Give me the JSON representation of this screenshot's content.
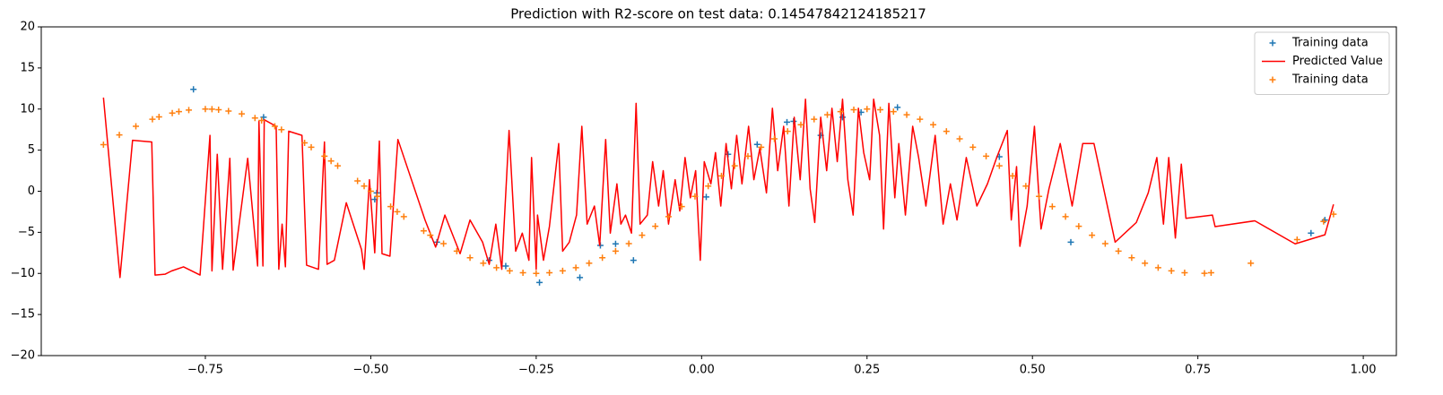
{
  "chart_data": {
    "type": "scatter",
    "title": "Prediction with R2-score on test data: 0.14547842124185217",
    "xlim": [
      -0.998,
      1.05
    ],
    "ylim": [
      -20,
      20
    ],
    "xticks": [
      {
        "value": -0.75,
        "label": "−0.75"
      },
      {
        "value": -0.5,
        "label": "−0.50"
      },
      {
        "value": -0.25,
        "label": "−0.25"
      },
      {
        "value": 0,
        "label": "0.00"
      },
      {
        "value": 0.25,
        "label": "0.25"
      },
      {
        "value": 0.5,
        "label": "0.50"
      },
      {
        "value": 0.75,
        "label": "0.75"
      },
      {
        "value": 1,
        "label": "1.00"
      }
    ],
    "yticks": [
      {
        "value": -20,
        "label": "−20"
      },
      {
        "value": -15,
        "label": "−15"
      },
      {
        "value": -10,
        "label": "−10"
      },
      {
        "value": -5,
        "label": "−5"
      },
      0,
      5,
      10,
      15,
      20
    ],
    "grid": false,
    "legend": "upper right",
    "series": [
      {
        "name": "Training data",
        "type": "scatter",
        "color": "#1f77b4",
        "x": [
          -0.768,
          -0.662,
          -0.491,
          -0.494,
          -0.4,
          -0.321,
          -0.296,
          -0.245,
          -0.184,
          -0.153,
          -0.13,
          -0.103,
          0.007,
          0.04,
          0.084,
          0.129,
          0.139,
          0.18,
          0.213,
          0.241,
          0.296,
          0.45,
          0.558,
          0.921,
          0.942
        ],
        "values": [
          12.4,
          9.0,
          -0.2,
          -1.0,
          -6.2,
          -8.4,
          -9.1,
          -11.1,
          -10.5,
          -6.6,
          -6.4,
          -8.4,
          -0.7,
          4.5,
          5.7,
          8.4,
          8.5,
          6.8,
          9.0,
          9.6,
          10.2,
          4.2,
          -6.2,
          -5.1,
          -3.5
        ]
      },
      {
        "name": "Predicted Value",
        "type": "line",
        "color": "#ff0000",
        "x": [
          -0.904,
          -0.879,
          -0.86,
          -0.831,
          -0.826,
          -0.811,
          -0.801,
          -0.783,
          -0.758,
          -0.743,
          -0.74,
          -0.732,
          -0.724,
          -0.713,
          -0.708,
          -0.686,
          -0.671,
          -0.669,
          -0.663,
          -0.661,
          -0.643,
          -0.639,
          -0.634,
          -0.629,
          -0.624,
          -0.604,
          -0.597,
          -0.579,
          -0.57,
          -0.566,
          -0.555,
          -0.537,
          -0.514,
          -0.51,
          -0.502,
          -0.494,
          -0.487,
          -0.483,
          -0.471,
          -0.459,
          -0.418,
          -0.402,
          -0.388,
          -0.365,
          -0.35,
          -0.331,
          -0.321,
          -0.311,
          -0.302,
          -0.291,
          -0.281,
          -0.271,
          -0.261,
          -0.257,
          -0.25,
          -0.248,
          -0.239,
          -0.23,
          -0.216,
          -0.21,
          -0.2,
          -0.189,
          -0.181,
          -0.173,
          -0.162,
          -0.154,
          -0.145,
          -0.138,
          -0.128,
          -0.122,
          -0.115,
          -0.106,
          -0.099,
          -0.093,
          -0.082,
          -0.074,
          -0.065,
          -0.058,
          -0.05,
          -0.04,
          -0.033,
          -0.025,
          -0.017,
          -0.009,
          -0.002,
          0.004,
          0.014,
          0.021,
          0.029,
          0.037,
          0.045,
          0.053,
          0.061,
          0.071,
          0.079,
          0.088,
          0.098,
          0.107,
          0.115,
          0.124,
          0.132,
          0.14,
          0.149,
          0.157,
          0.164,
          0.171,
          0.18,
          0.189,
          0.197,
          0.205,
          0.213,
          0.221,
          0.229,
          0.237,
          0.245,
          0.254,
          0.26,
          0.269,
          0.275,
          0.283,
          0.292,
          0.298,
          0.308,
          0.319,
          0.328,
          0.339,
          0.353,
          0.365,
          0.376,
          0.386,
          0.4,
          0.416,
          0.432,
          0.446,
          0.462,
          0.468,
          0.476,
          0.481,
          0.492,
          0.503,
          0.513,
          0.525,
          0.542,
          0.56,
          0.576,
          0.593,
          0.625,
          0.657,
          0.675,
          0.688,
          0.698,
          0.706,
          0.716,
          0.725,
          0.732,
          0.772,
          0.776,
          0.836,
          0.897,
          0.942,
          0.955
        ],
        "values": [
          11.4,
          -10.5,
          6.2,
          6.0,
          -10.2,
          -10.1,
          -9.7,
          -9.2,
          -10.2,
          6.8,
          -9.7,
          4.5,
          -9.5,
          4.0,
          -9.6,
          4.0,
          -9.1,
          8.5,
          -9.1,
          8.7,
          7.9,
          -9.5,
          -4.0,
          -9.2,
          7.3,
          6.8,
          -9.0,
          -9.5,
          6.0,
          -8.9,
          -8.4,
          -1.4,
          -7.1,
          -9.5,
          1.4,
          -7.5,
          6.1,
          -7.6,
          -7.9,
          6.3,
          -3.5,
          -6.8,
          -2.9,
          -7.6,
          -3.5,
          -6.2,
          -8.9,
          -4.0,
          -9.5,
          7.4,
          -7.3,
          -5.1,
          -8.4,
          4.1,
          -9.5,
          -2.9,
          -8.4,
          -4.3,
          5.8,
          -7.3,
          -6.2,
          -2.9,
          7.9,
          -4.0,
          -1.8,
          -6.6,
          6.3,
          -5.1,
          0.9,
          -4.0,
          -2.9,
          -5.1,
          10.7,
          -4.0,
          -2.9,
          3.6,
          -1.8,
          2.5,
          -4.0,
          1.4,
          -2.4,
          4.1,
          -0.8,
          2.5,
          -8.4,
          3.6,
          0.9,
          4.7,
          -1.8,
          5.8,
          0.3,
          6.8,
          0.9,
          7.9,
          1.4,
          5.2,
          -0.2,
          10.1,
          2.5,
          7.9,
          -1.8,
          9.0,
          1.4,
          11.2,
          0.3,
          -3.8,
          9.0,
          2.5,
          10.1,
          3.6,
          11.2,
          1.4,
          -2.9,
          10.1,
          4.7,
          1.4,
          11.2,
          6.8,
          -4.6,
          10.7,
          -0.8,
          5.8,
          -2.9,
          7.9,
          4.1,
          -1.8,
          6.8,
          -4.0,
          0.9,
          -3.5,
          4.1,
          -1.8,
          0.9,
          4.1,
          7.4,
          -3.5,
          3.0,
          -6.7,
          -1.8,
          7.9,
          -4.6,
          0.3,
          5.8,
          -1.8,
          5.8,
          5.8,
          -6.2,
          -3.8,
          -0.2,
          4.1,
          -4.0,
          4.1,
          -5.7,
          3.3,
          -3.3,
          -2.9,
          -4.3,
          -3.6,
          -6.4,
          -5.3,
          -1.6
        ]
      },
      {
        "name": "Training data",
        "type": "scatter",
        "color": "#ff7f0e",
        "x": [
          -0.904,
          -0.88,
          -0.855,
          -0.83,
          -0.82,
          -0.8,
          -0.79,
          -0.775,
          -0.75,
          -0.74,
          -0.73,
          -0.715,
          -0.695,
          -0.675,
          -0.665,
          -0.645,
          -0.635,
          -0.6,
          -0.59,
          -0.57,
          -0.56,
          -0.55,
          -0.52,
          -0.51,
          -0.5,
          -0.49,
          -0.47,
          -0.46,
          -0.45,
          -0.42,
          -0.41,
          -0.39,
          -0.37,
          -0.35,
          -0.33,
          -0.31,
          -0.29,
          -0.27,
          -0.25,
          -0.23,
          -0.21,
          -0.19,
          -0.17,
          -0.15,
          -0.13,
          -0.11,
          -0.09,
          -0.07,
          -0.05,
          -0.03,
          -0.01,
          0.01,
          0.03,
          0.05,
          0.07,
          0.09,
          0.11,
          0.13,
          0.15,
          0.17,
          0.19,
          0.21,
          0.23,
          0.25,
          0.27,
          0.29,
          0.31,
          0.33,
          0.35,
          0.37,
          0.39,
          0.41,
          0.43,
          0.45,
          0.47,
          0.49,
          0.51,
          0.53,
          0.55,
          0.57,
          0.59,
          0.61,
          0.63,
          0.65,
          0.67,
          0.69,
          0.71,
          0.73,
          0.76,
          0.77,
          0.83,
          0.9,
          0.94,
          0.955
        ],
        "values": [
          5.67,
          6.85,
          7.9,
          8.76,
          9.05,
          9.51,
          9.69,
          9.88,
          10,
          9.98,
          9.92,
          9.76,
          9.41,
          8.91,
          8.61,
          7.9,
          7.5,
          5.88,
          5.36,
          4.26,
          3.68,
          3.09,
          1.25,
          0.63,
          0,
          -0.63,
          -1.87,
          -2.49,
          -3.09,
          -4.82,
          -5.36,
          -6.37,
          -7.29,
          -8.09,
          -8.76,
          -9.3,
          -9.69,
          -9.92,
          -10,
          -9.92,
          -9.69,
          -9.3,
          -8.76,
          -8.09,
          -7.29,
          -6.37,
          -5.36,
          -4.26,
          -3.09,
          -1.87,
          -0.63,
          0.63,
          1.87,
          3.09,
          4.26,
          5.36,
          6.37,
          7.29,
          8.09,
          8.76,
          9.3,
          9.69,
          9.92,
          10,
          9.92,
          9.69,
          9.3,
          8.76,
          8.09,
          7.29,
          6.37,
          5.36,
          4.26,
          3.09,
          1.87,
          0.63,
          -0.63,
          -1.87,
          -3.09,
          -4.26,
          -5.36,
          -6.37,
          -7.29,
          -8.09,
          -8.76,
          -9.3,
          -9.69,
          -9.92,
          -9.98,
          -9.92,
          -8.76,
          -5.88,
          -3.68,
          -2.79
        ]
      }
    ]
  }
}
